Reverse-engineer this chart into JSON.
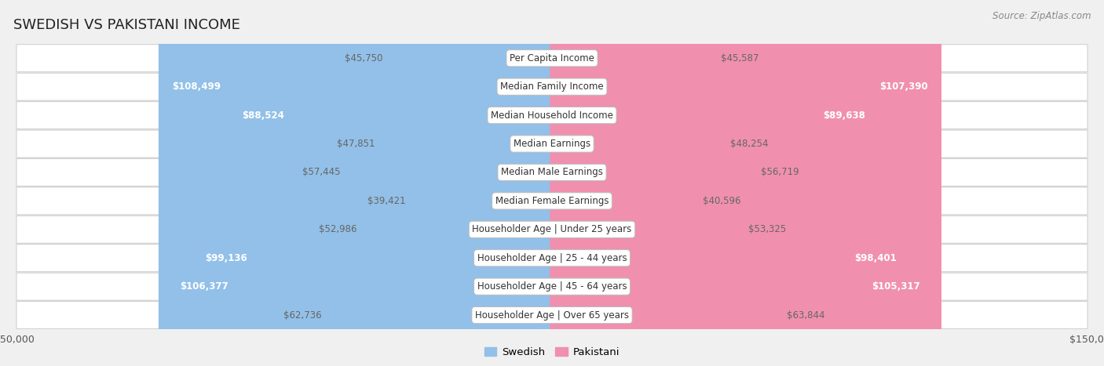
{
  "title": "SWEDISH VS PAKISTANI INCOME",
  "source": "Source: ZipAtlas.com",
  "categories": [
    "Per Capita Income",
    "Median Family Income",
    "Median Household Income",
    "Median Earnings",
    "Median Male Earnings",
    "Median Female Earnings",
    "Householder Age | Under 25 years",
    "Householder Age | 25 - 44 years",
    "Householder Age | 45 - 64 years",
    "Householder Age | Over 65 years"
  ],
  "swedish": [
    45750,
    108499,
    88524,
    47851,
    57445,
    39421,
    52986,
    99136,
    106377,
    62736
  ],
  "pakistani": [
    45587,
    107390,
    89638,
    48254,
    56719,
    40596,
    53325,
    98401,
    105317,
    63844
  ],
  "swedish_labels": [
    "$45,750",
    "$108,499",
    "$88,524",
    "$47,851",
    "$57,445",
    "$39,421",
    "$52,986",
    "$99,136",
    "$106,377",
    "$62,736"
  ],
  "pakistani_labels": [
    "$45,587",
    "$107,390",
    "$89,638",
    "$48,254",
    "$56,719",
    "$40,596",
    "$53,325",
    "$98,401",
    "$105,317",
    "$63,844"
  ],
  "swedish_color": "#92C0E8",
  "pakistani_color": "#F090AE",
  "label_color_inside": "#ffffff",
  "label_color_outside": "#666666",
  "bg_color": "#f0f0f0",
  "row_bg_color": "#ffffff",
  "row_border_color": "#cccccc",
  "max_value": 150000,
  "center_label_bg": "#ffffff",
  "center_label_border": "#bbbbbb",
  "title_fontsize": 13,
  "source_fontsize": 8.5,
  "bar_label_fontsize": 8.5,
  "category_fontsize": 8.5,
  "axis_label_fontsize": 9,
  "inside_threshold": 65000
}
